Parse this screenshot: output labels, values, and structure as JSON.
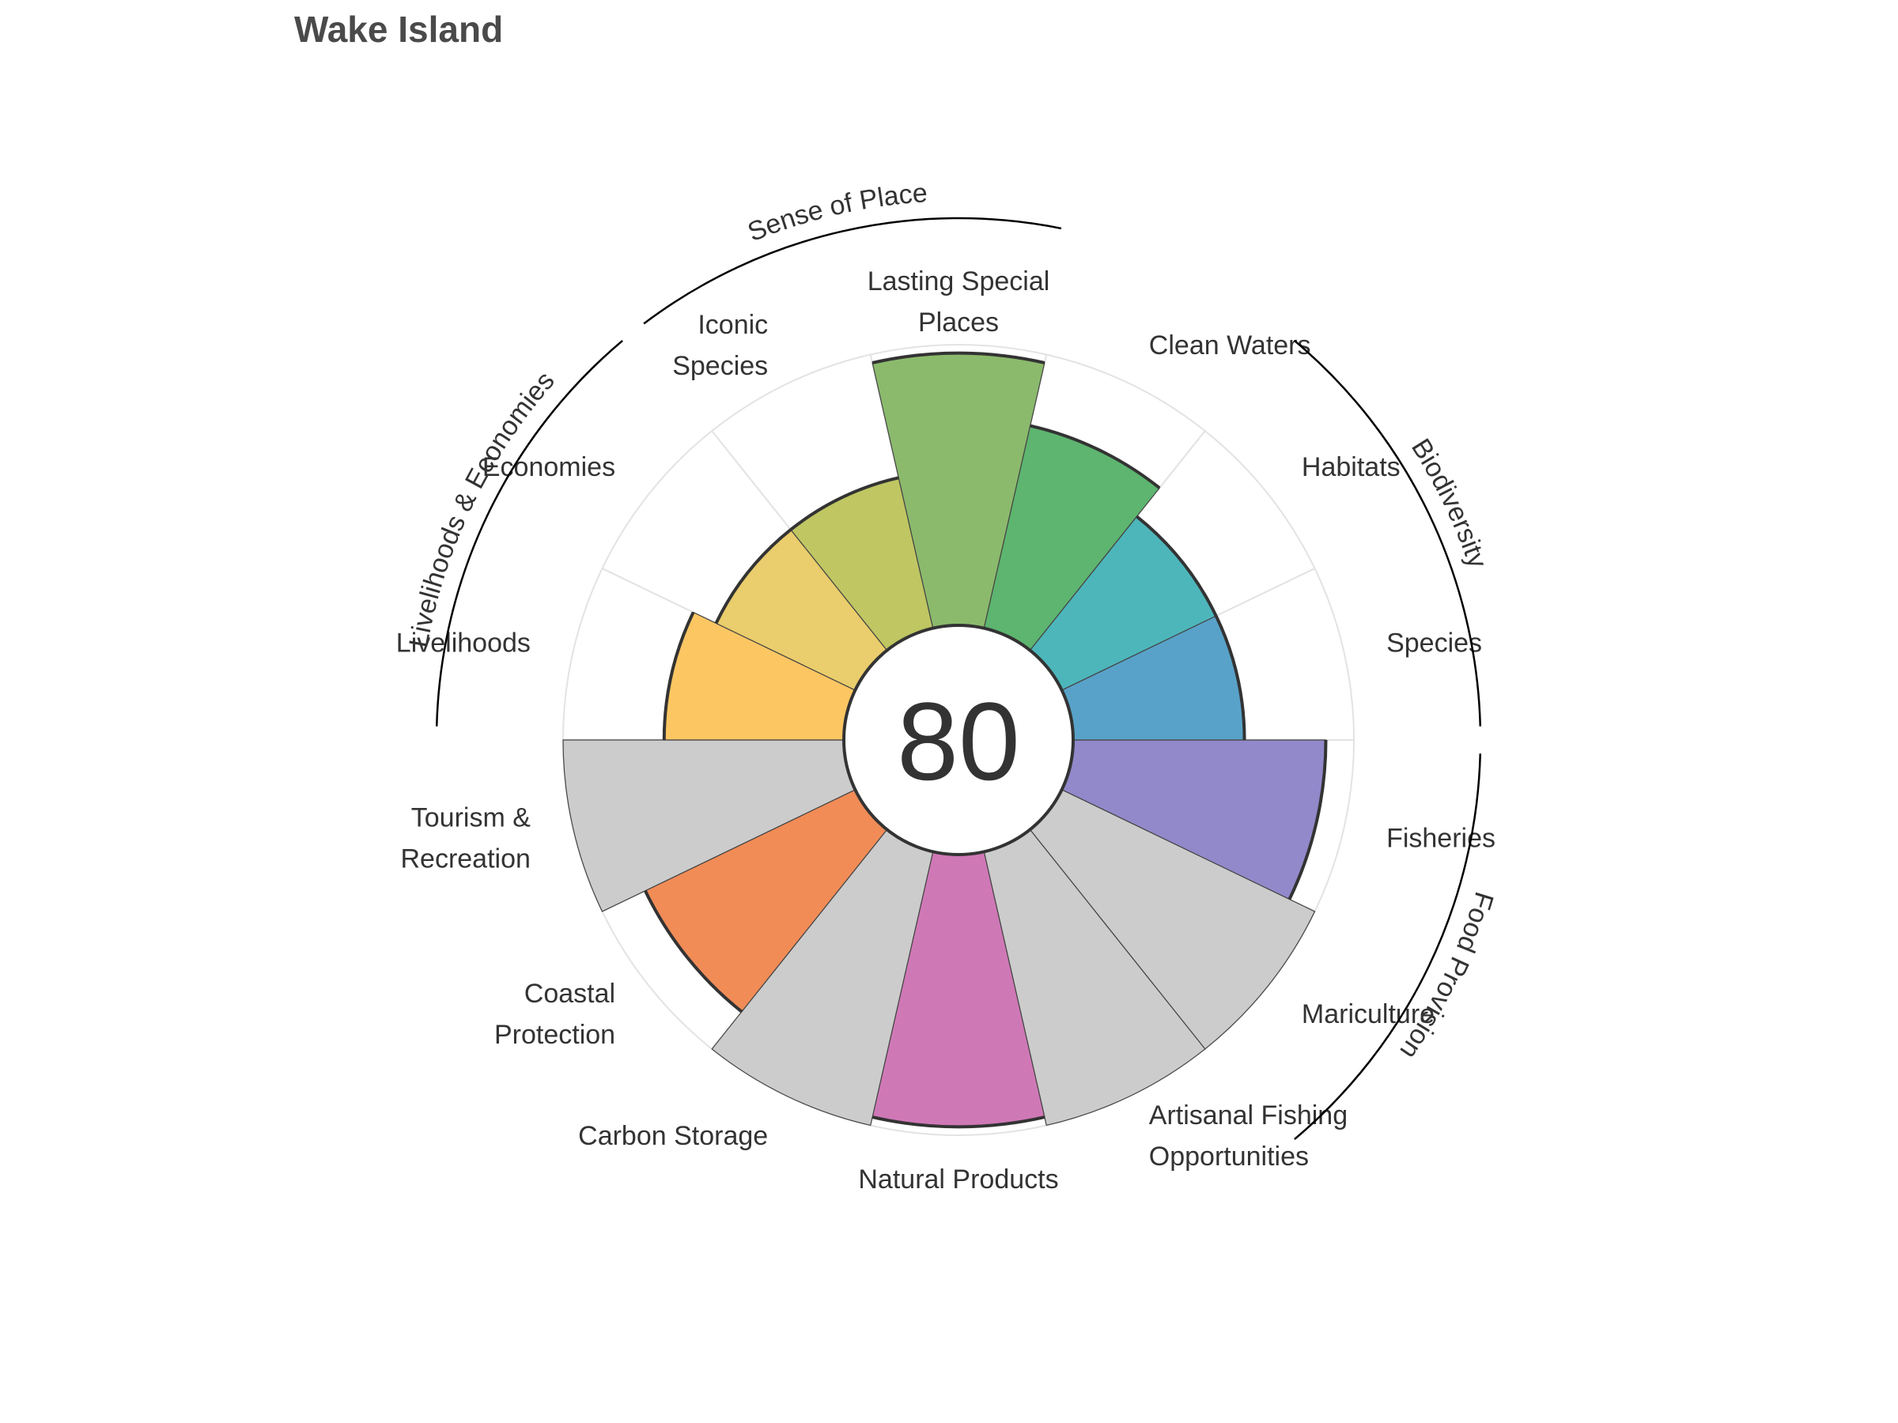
{
  "title": "Wake Island",
  "chart_data": {
    "type": "flower",
    "index_score": "80",
    "max_value": 100,
    "petals": [
      {
        "label": [
          "Fisheries"
        ],
        "value": 90,
        "color": "#9189ca",
        "na": false
      },
      {
        "label": [
          "Mariculture"
        ],
        "value": 100,
        "color": "#cccccc",
        "na": true
      },
      {
        "label": [
          "Artisanal Fishing",
          "Opportunities"
        ],
        "value": 100,
        "color": "#cccccc",
        "na": true
      },
      {
        "label": [
          "Natural Products"
        ],
        "value": 97,
        "color": "#cf78b6",
        "na": false
      },
      {
        "label": [
          "Carbon Storage"
        ],
        "value": 100,
        "color": "#cccccc",
        "na": true
      },
      {
        "label": [
          "Coastal",
          "Protection"
        ],
        "value": 83,
        "color": "#f18c57",
        "na": false
      },
      {
        "label": [
          "Tourism &",
          "Recreation"
        ],
        "value": 100,
        "color": "#cccccc",
        "na": true
      },
      {
        "label": [
          "Livelihoods"
        ],
        "value": 64,
        "color": "#fcc663",
        "na": false
      },
      {
        "label": [
          "Economies"
        ],
        "value": 55,
        "color": "#eacd6c",
        "na": false
      },
      {
        "label": [
          "Iconic",
          "Species"
        ],
        "value": 55,
        "color": "#bfc662",
        "na": false
      },
      {
        "label": [
          "Lasting Special",
          "Places"
        ],
        "value": 97,
        "color": "#8bba6c",
        "na": false
      },
      {
        "label": [
          "Clean Waters"
        ],
        "value": 74,
        "color": "#5db56f",
        "na": false
      },
      {
        "label": [
          "Habitats"
        ],
        "value": 61,
        "color": "#4db6bb",
        "na": false
      },
      {
        "label": [
          "Species"
        ],
        "value": 61,
        "color": "#58a2c9",
        "na": false
      }
    ],
    "groups": [
      {
        "name": "Food Provision",
        "from": 0,
        "to": 2
      },
      {
        "name": "Biodiversity",
        "from": 12,
        "to": 14
      },
      {
        "name": "Livelihoods & Economies",
        "from": 7,
        "to": 9
      },
      {
        "name": "Sense of Place",
        "from": 9,
        "to": 11
      }
    ]
  }
}
